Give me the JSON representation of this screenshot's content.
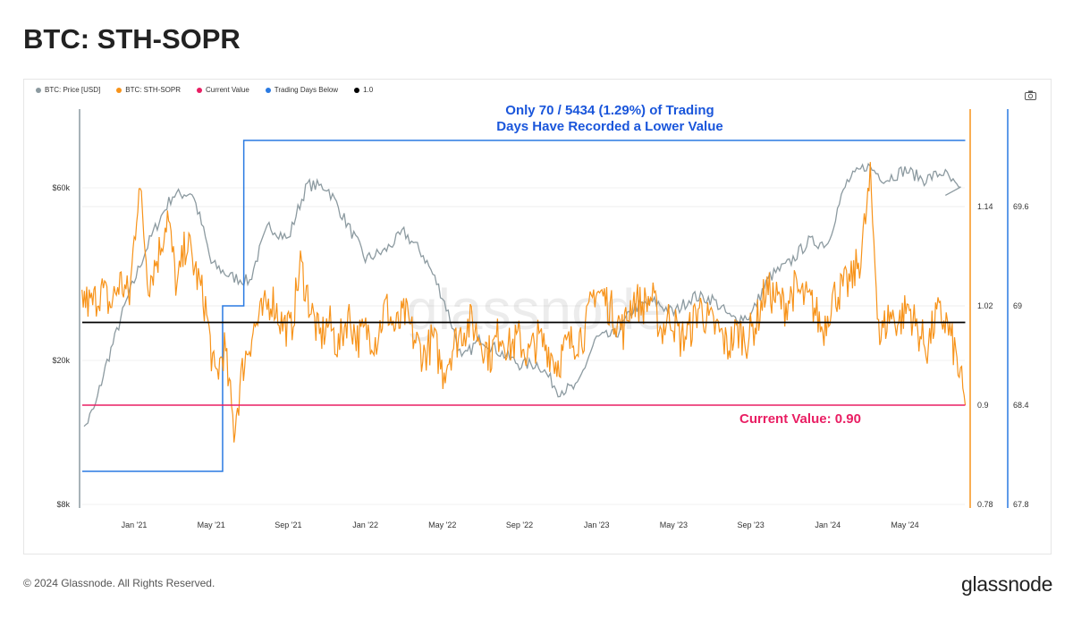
{
  "title": "BTC: STH-SOPR",
  "footer": "© 2024 Glassnode. All Rights Reserved.",
  "logo": "glassnode",
  "watermark": "glassnode",
  "colors": {
    "price": "#8c9aa0",
    "sopr": "#f7931a",
    "current": "#e91e63",
    "days": "#2a7ae2",
    "one": "#000000"
  },
  "chart_data": {
    "type": "line",
    "title": "BTC: STH-SOPR",
    "legend": [
      "BTC: Price [USD]",
      "BTC: STH-SOPR",
      "Current Value",
      "Trading Days Below",
      "1.0"
    ],
    "legend_placement": "top-left",
    "x_ticks": [
      "Jan '21",
      "May '21",
      "Sep '21",
      "Jan '22",
      "May '22",
      "Sep '22",
      "Jan '23",
      "May '23",
      "Sep '23",
      "Jan '24",
      "May '24"
    ],
    "y_left_ticks": [
      "$8k",
      "$20k",
      "$60k"
    ],
    "y_right_ticks": [
      "0.78",
      "0.9",
      "1.02",
      "1.14"
    ],
    "y_right2_ticks": [
      "67.8",
      "68.4",
      "69",
      "69.6"
    ],
    "sopr_range": [
      0.78,
      1.2
    ],
    "days_range": [
      67.8,
      70.1
    ],
    "price_range_k": [
      8,
      80
    ],
    "price_start": "2020-10",
    "price_step": "monthly",
    "price_k": [
      11.5,
      15,
      23,
      33,
      45,
      57,
      58,
      37,
      34,
      33,
      47,
      43,
      61,
      60,
      48,
      38,
      40,
      45,
      39,
      30,
      20,
      23,
      21,
      19.5,
      19.5,
      16.5,
      16.8,
      23,
      23.5,
      28,
      29,
      27,
      30,
      29.5,
      26,
      26.5,
      34,
      37,
      42.5,
      42,
      62,
      69,
      63,
      67,
      63,
      66,
      57
    ],
    "sopr_start": "2020-10-10",
    "sopr_end": "2024-08-05",
    "sopr": [
      1.03,
      1.02,
      1.04,
      1.02,
      1.05,
      1.03,
      1.17,
      1.05,
      1.08,
      1.13,
      1.04,
      1.1,
      1.06,
      1.02,
      0.93,
      0.97,
      0.87,
      0.95,
      0.99,
      1.01,
      1.03,
      1.0,
      0.99,
      1.07,
      1.02,
      0.98,
      1.0,
      0.97,
      1.01,
      0.98,
      0.99,
      0.98,
      1.02,
      0.99,
      1.01,
      0.98,
      0.96,
      0.98,
      0.94,
      0.97,
      0.99,
      1.0,
      0.98,
      0.96,
      0.99,
      0.97,
      0.98,
      0.96,
      0.98,
      0.97,
      0.95,
      0.97,
      0.98,
      0.99,
      1.04,
      1.03,
      1.01,
      0.99,
      1.03,
      1.02,
      1.03,
      0.99,
      1.01,
      0.98,
      0.99,
      1.02,
      1.0,
      0.99,
      0.97,
      0.99,
      0.98,
      1.0,
      1.04,
      1.03,
      1.02,
      1.04,
      1.03,
      1.02,
      0.99,
      1.03,
      1.04,
      1.05,
      1.08,
      1.17,
      0.98,
      1.01,
      1.0,
      1.02,
      0.99,
      0.97,
      1.01,
      1.0,
      0.96,
      0.9
    ],
    "trading_days_below": [
      {
        "from": "2020-10-10",
        "value": 68
      },
      {
        "from": "2021-05-19",
        "value": 69
      },
      {
        "from": "2021-06-22",
        "value": 70
      }
    ],
    "current_value": 0.9,
    "reference_line": 1.0,
    "annotations": {
      "main": [
        "Only 70 / 5434 (1.29%) of Trading",
        "Days Have Recorded a Lower Value"
      ],
      "current": "Current Value: 0.90"
    }
  }
}
